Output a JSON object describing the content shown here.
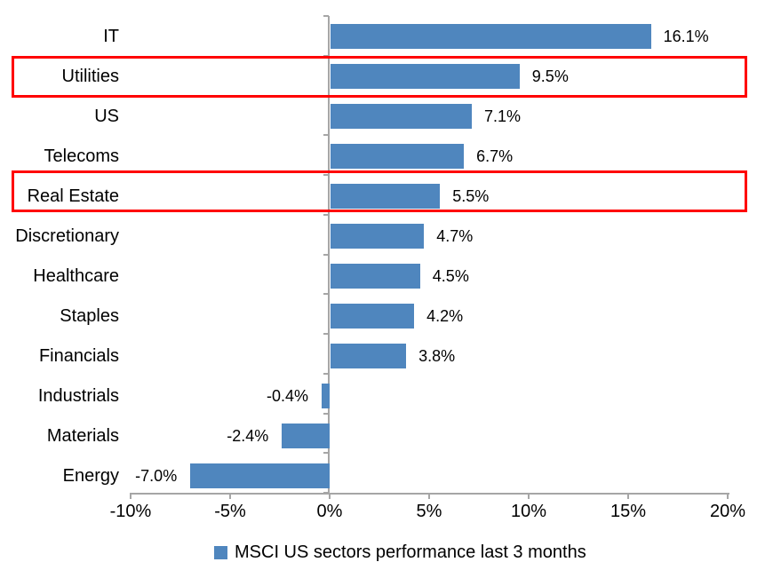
{
  "chart_data": {
    "type": "bar",
    "orientation": "horizontal",
    "title": "",
    "categories": [
      "IT",
      "Utilities",
      "US",
      "Telecoms",
      "Real Estate",
      "Discretionary",
      "Healthcare",
      "Staples",
      "Financials",
      "Industrials",
      "Materials",
      "Energy"
    ],
    "values": [
      16.1,
      9.5,
      7.1,
      6.7,
      5.5,
      4.7,
      4.5,
      4.2,
      3.8,
      -0.4,
      -2.4,
      -7.0
    ],
    "value_labels": [
      "16.1%",
      "9.5%",
      "7.1%",
      "6.7%",
      "5.5%",
      "4.7%",
      "4.5%",
      "4.2%",
      "3.8%",
      "-0.4%",
      "-2.4%",
      "-7.0%"
    ],
    "highlighted_categories": [
      "Utilities",
      "Real Estate"
    ],
    "highlighted_indices": [
      1,
      4
    ],
    "x_tick_labels": [
      "-10%",
      "-5%",
      "0%",
      "5%",
      "10%",
      "15%",
      "20%"
    ],
    "x_tick_values": [
      -10,
      -5,
      0,
      5,
      10,
      15,
      20
    ],
    "xlim": [
      -10,
      20
    ],
    "grid": false,
    "legend": {
      "label": "MSCI US sectors performance last 3 months",
      "position": "bottom"
    },
    "colors": {
      "bar": "#4F86BE",
      "highlight_border": "#FF0000",
      "axis": "#A6A6A6",
      "text": "#000000",
      "background": "#FFFFFF"
    }
  }
}
